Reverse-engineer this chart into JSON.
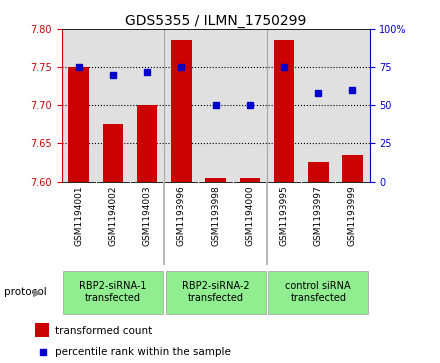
{
  "title": "GDS5355 / ILMN_1750299",
  "samples": [
    "GSM1194001",
    "GSM1194002",
    "GSM1194003",
    "GSM1193996",
    "GSM1193998",
    "GSM1194000",
    "GSM1193995",
    "GSM1193997",
    "GSM1193999"
  ],
  "transformed_counts": [
    7.75,
    7.675,
    7.7,
    7.785,
    7.605,
    7.605,
    7.785,
    7.625,
    7.635
  ],
  "percentile_ranks": [
    75,
    70,
    72,
    75,
    50,
    50,
    75,
    58,
    60
  ],
  "groups": [
    {
      "label": "RBP2-siRNA-1\ntransfected",
      "indices": [
        0,
        1,
        2
      ],
      "color": "#90ee90"
    },
    {
      "label": "RBP2-siRNA-2\ntransfected",
      "indices": [
        3,
        4,
        5
      ],
      "color": "#90ee90"
    },
    {
      "label": "control siRNA\ntransfected",
      "indices": [
        6,
        7,
        8
      ],
      "color": "#90ee90"
    }
  ],
  "ylim_left": [
    7.6,
    7.8
  ],
  "ylim_right": [
    0,
    100
  ],
  "yticks_left": [
    7.6,
    7.65,
    7.7,
    7.75,
    7.8
  ],
  "yticks_right": [
    0,
    25,
    50,
    75,
    100
  ],
  "bar_color": "#cc0000",
  "dot_color": "#0000cc",
  "background_color": "#ffffff",
  "title_fontsize": 10,
  "tick_fontsize": 7,
  "label_fontsize": 6.5,
  "group_fontsize": 7,
  "legend_fontsize": 7.5,
  "protocol_label": "protocol"
}
